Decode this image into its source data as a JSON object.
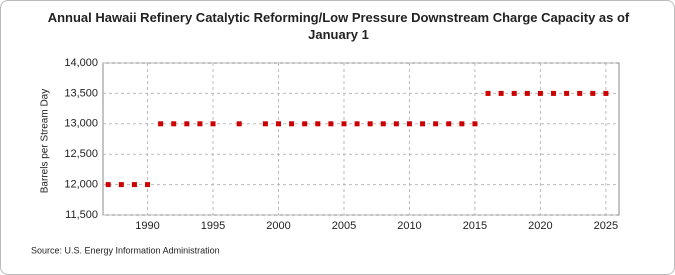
{
  "chart_data": {
    "type": "scatter",
    "title": "Annual Hawaii Refinery Catalytic Reforming/Low Pressure Downstream Charge Capacity as of January  1",
    "y_label": "Barrels per Stream Day",
    "source": "Source: U.S. Energy Information Administration",
    "series": [
      {
        "name": "Hawaii",
        "color": "#cc0000",
        "x": [
          1987,
          1988,
          1989,
          1990,
          1991,
          1992,
          1993,
          1994,
          1995,
          1997,
          1999,
          2000,
          2001,
          2002,
          2003,
          2004,
          2005,
          2006,
          2007,
          2008,
          2009,
          2010,
          2011,
          2012,
          2013,
          2014,
          2015,
          2016,
          2017,
          2018,
          2019,
          2020,
          2021,
          2022,
          2023,
          2024,
          2025
        ],
        "values": [
          12000,
          12000,
          12000,
          12000,
          13000,
          13000,
          13000,
          13000,
          13000,
          13000,
          13000,
          13000,
          13000,
          13000,
          13000,
          13000,
          13000,
          13000,
          13000,
          13000,
          13000,
          13000,
          13000,
          13000,
          13000,
          13000,
          13000,
          13500,
          13500,
          13500,
          13500,
          13500,
          13500,
          13500,
          13500,
          13500,
          13500
        ]
      }
    ],
    "xlim": [
      1986.6,
      2026
    ],
    "xticks": [
      1990,
      1995,
      2000,
      2005,
      2010,
      2015,
      2020,
      2025
    ],
    "ylim": [
      11500,
      14000
    ],
    "yticks": [
      {
        "value": 11500,
        "label": "11,500"
      },
      {
        "value": 12000,
        "label": "12,000"
      },
      {
        "value": 12500,
        "label": "12,500"
      },
      {
        "value": 13000,
        "label": "13,000"
      },
      {
        "value": 13500,
        "label": "13,500"
      },
      {
        "value": 14000,
        "label": "14,000"
      }
    ],
    "grid": true
  }
}
